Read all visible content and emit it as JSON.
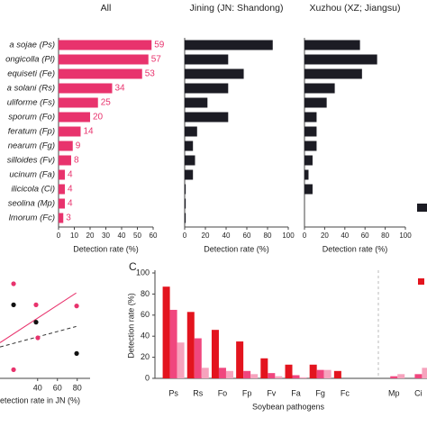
{
  "chart_data": [
    {
      "type": "hbar",
      "title": "All",
      "categories": [
        "a sojae (Ps)",
        "ongicolla (Pl)",
        "equiseti (Fe)",
        "a solani (Rs)",
        "uliforme (Fs)",
        "sporum (Fo)",
        "feratum (Fp)",
        "nearum (Fg)",
        "silloides (Fv)",
        "ucinum (Fa)",
        "ilicicola (Ci)",
        "seolina (Mp)",
        "lmorum (Fc)"
      ],
      "values": [
        59,
        57,
        53,
        34,
        25,
        20,
        14,
        9,
        8,
        4,
        4,
        4,
        3
      ],
      "color": "#e8336d",
      "data_labels": true,
      "xlim": [
        0,
        60
      ],
      "xticks": [
        0,
        10,
        20,
        30,
        40,
        50,
        60
      ],
      "xlabel": "Detection rate (%)"
    },
    {
      "type": "hbar",
      "title": "Jining (JN: Shandong)",
      "values": [
        85,
        42,
        57,
        42,
        22,
        42,
        12,
        8,
        10,
        8,
        1,
        1,
        1
      ],
      "color": "#1c1c24",
      "xlim": [
        0,
        100
      ],
      "xticks": [
        0,
        20,
        40,
        60,
        80,
        100
      ],
      "xlabel": "Detection rate (%)"
    },
    {
      "type": "hbar",
      "title": "Xuzhou (XZ; Jiangsu)",
      "values": [
        55,
        72,
        57,
        30,
        22,
        12,
        12,
        12,
        8,
        4,
        8,
        0,
        0
      ],
      "color": "#1c1c24",
      "xlim": [
        0,
        100
      ],
      "xticks": [
        0,
        20,
        40,
        60,
        80,
        100
      ],
      "xlabel": "Detection rate (%)"
    },
    {
      "type": "scatter",
      "xlabel": "etection rate in JN (%)",
      "xlim": [
        2,
        93
      ],
      "xticks": [
        40,
        60,
        80
      ],
      "ylim": [
        0,
        100
      ],
      "series": [
        {
          "color": "#e8336d",
          "x": [
            15.7,
            38.4,
            79.4,
            15.7,
            40.2
          ],
          "values": [
            87.5,
            68,
            67,
            8,
            37.5
          ]
        },
        {
          "color": "#111111",
          "x": [
            15.7,
            38.4,
            79.4
          ],
          "values": [
            68,
            52,
            23
          ]
        }
      ],
      "fits": [
        {
          "color": "#e8336d",
          "dash": false,
          "x": [
            2,
            79
          ],
          "values": [
            33,
            79
          ]
        },
        {
          "color": "#333333",
          "dash": true,
          "x": [
            2,
            79
          ],
          "values": [
            29,
            48
          ]
        }
      ]
    },
    {
      "type": "groupbar",
      "label": "C",
      "categories": [
        "Ps",
        "Rs",
        "Fo",
        "Fp",
        "Fv",
        "Fa",
        "Fg",
        "Fc",
        "Mp",
        "Ci"
      ],
      "series": [
        {
          "color": "#e3141e",
          "values": [
            87,
            63,
            46,
            35,
            19,
            13,
            13,
            7,
            0,
            0
          ]
        },
        {
          "color": "#f0467e",
          "values": [
            65,
            38,
            10,
            7,
            5,
            3,
            8,
            0,
            2,
            4
          ]
        },
        {
          "color": "#f6a3bd",
          "values": [
            34,
            10,
            7,
            4,
            2,
            1,
            8,
            0,
            4,
            10
          ]
        }
      ],
      "ylim": [
        0,
        100
      ],
      "yticks": [
        0,
        20,
        40,
        60,
        80,
        100
      ],
      "ylabel": "Detection rate (%)",
      "xlabel": "Soybean pathogens"
    }
  ]
}
